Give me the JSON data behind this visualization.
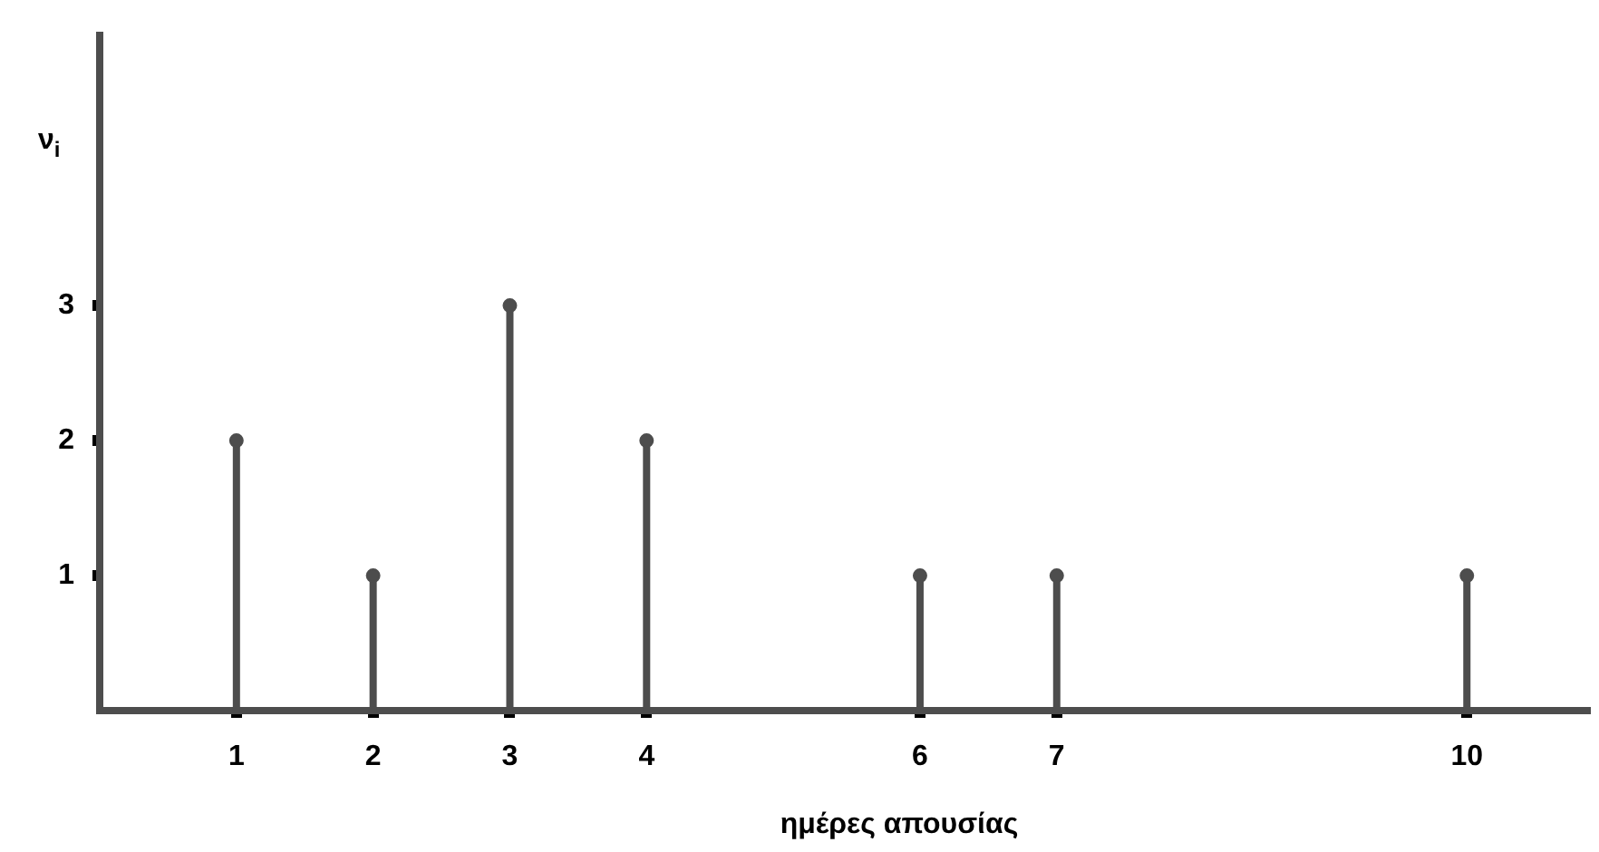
{
  "chart_data": {
    "type": "lollipop",
    "xlabel": "ημέρες απουσίας",
    "ylabel": "ν$_{i}$",
    "x": [
      1,
      2,
      3,
      4,
      6,
      7,
      10
    ],
    "series": [
      {
        "color": "#4d4d4d",
        "values": [
          2,
          1,
          3,
          2,
          1,
          1,
          1
        ]
      }
    ],
    "xlim": [
      0,
      10.9
    ],
    "xticks": [
      1,
      2,
      3,
      4,
      6,
      7,
      10
    ],
    "ylim": [
      0,
      5
    ],
    "yticks": [
      1,
      2,
      3
    ],
    "marker": "circle",
    "grid": false,
    "legend": false
  }
}
